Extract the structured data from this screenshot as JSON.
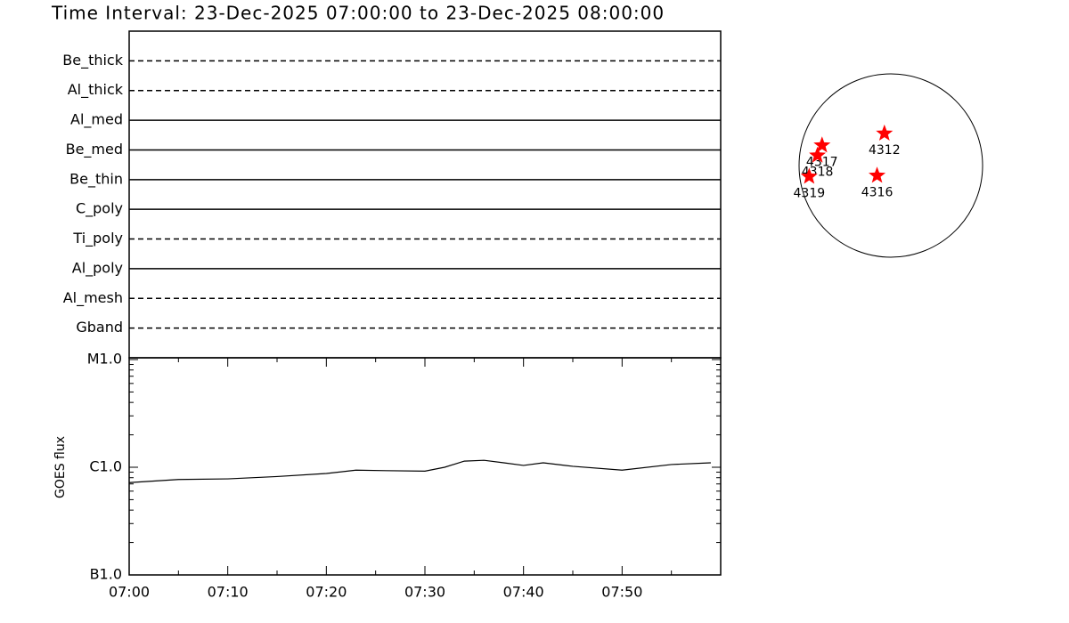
{
  "chart_data": [
    {
      "type": "timeline",
      "title": "Time Interval: 23-Dec-2025 07:00:00 to 23-Dec-2025 08:00:00",
      "categories": [
        "Be_thick",
        "Al_thick",
        "Al_med",
        "Be_med",
        "Be_thin",
        "C_poly",
        "Ti_poly",
        "Al_poly",
        "Al_mesh",
        "Gband"
      ],
      "linestyles": [
        "dashed",
        "dashed",
        "solid",
        "solid",
        "solid",
        "solid",
        "dashed",
        "solid",
        "dashed",
        "dashed"
      ],
      "color": "#000000"
    },
    {
      "type": "line",
      "ylabel": "GOES flux",
      "x": [
        0,
        5,
        10,
        15,
        20,
        23,
        26,
        30,
        32,
        34,
        36,
        38,
        40,
        42,
        45,
        50,
        55,
        59
      ],
      "values": [
        7.2e-07,
        7.7e-07,
        7.8e-07,
        8.2e-07,
        8.75e-07,
        9.4e-07,
        9.3e-07,
        9.2e-07,
        1e-06,
        1.14e-06,
        1.16e-06,
        1.1e-06,
        1.04e-06,
        1.1e-06,
        1.02e-06,
        9.4e-07,
        1.06e-06,
        1.1e-06
      ],
      "color": "#000000",
      "xlim": [
        0,
        60
      ],
      "xticks": [
        {
          "value": 0,
          "label": "07:00"
        },
        {
          "value": 10,
          "label": "07:10"
        },
        {
          "value": 20,
          "label": "07:20"
        },
        {
          "value": 30,
          "label": "07:30"
        },
        {
          "value": 40,
          "label": "07:40"
        },
        {
          "value": 50,
          "label": "07:50"
        }
      ],
      "ylim": [
        1e-07,
        1e-05
      ],
      "yticks": [
        {
          "value": 1e-07,
          "label": "B1.0"
        },
        {
          "value": 1e-06,
          "label": "C1.0"
        },
        {
          "value": 1e-05,
          "label": "M1.0"
        }
      ],
      "log_scale": true
    },
    {
      "type": "scatter",
      "labels": [
        "4312",
        "4316",
        "4317",
        "4318",
        "4319"
      ],
      "x": [
        -0.07,
        -0.15,
        -0.75,
        -0.8,
        -0.89
      ],
      "y": [
        0.35,
        -0.11,
        0.22,
        0.11,
        -0.12
      ],
      "xlim": [
        -1,
        1
      ],
      "ylim": [
        -1,
        1
      ],
      "color": "#ff0000"
    }
  ]
}
